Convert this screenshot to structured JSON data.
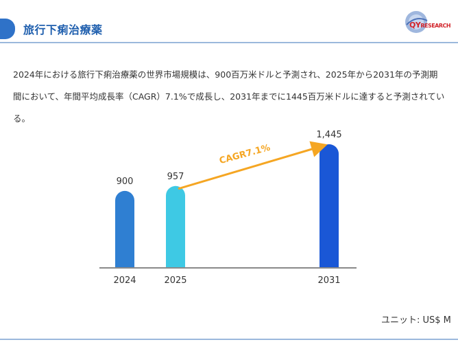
{
  "header": {
    "title": "旅行下痢治療薬",
    "logo": {
      "brand": "QY",
      "suffix": "RESEARCH"
    }
  },
  "summary": "2024年における旅行下痢治療薬の世界市場規模は、900百万米ドルと予測され、2025年から2031年の予測期間において、年間平均成長率（CAGR）7.1%で成長し、2031年までに1445百万米ドルに達すると予測されている。",
  "unit_label": "ユニット: US$ M",
  "chart_data": {
    "type": "bar",
    "categories": [
      "2024",
      "2025",
      "2031"
    ],
    "values": [
      900,
      957,
      1445
    ],
    "value_labels": [
      "900",
      "957",
      "1,445"
    ],
    "colors": [
      "#2f7fd2",
      "#3ec9e4",
      "#1a57d6"
    ],
    "annotation": {
      "text": "CAGR7.1%",
      "from": "2025",
      "to": "2031",
      "color": "#f5a623"
    },
    "ylim": [
      0,
      1600
    ]
  }
}
